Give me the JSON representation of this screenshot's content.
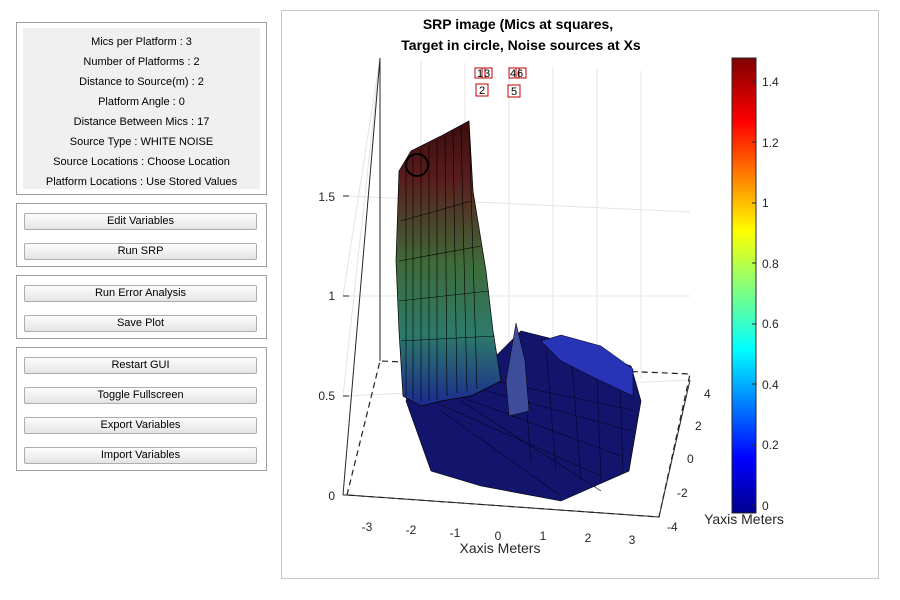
{
  "info": {
    "mics_per_platform": "Mics per Platform : 3",
    "number_of_platforms": "Number of Platforms : 2",
    "distance_to_source": "Distance to Source(m) : 2",
    "platform_angle": "Platform Angle : 0",
    "distance_between_mics": "Distance Between Mics : 17",
    "source_type": "Source Type : WHITE NOISE",
    "source_locations": "Source Locations : Choose Location",
    "platform_locations": "Platform Locations : Use Stored Values"
  },
  "buttons": {
    "edit_variables": "Edit Variables",
    "run_srp": "Run SRP",
    "run_error_analysis": "Run Error Analysis",
    "save_plot": "Save Plot",
    "restart_gui": "Restart GUI",
    "toggle_fullscreen": "Toggle Fullscreen",
    "export_variables": "Export Variables",
    "import_variables": "Import Variables"
  },
  "chart_data": {
    "type": "surface",
    "title_line1": "SRP image (Mics at squares,",
    "title_line2": "Target in circle, Noise sources at Xs",
    "xlabel": "Xaxis Meters",
    "ylabel": "Yaxis Meters",
    "x_ticks": [
      "-3",
      "-2",
      "-1",
      "0",
      "1",
      "2",
      "3"
    ],
    "y_ticks": [
      "4",
      "2",
      "0",
      "-2",
      "-4"
    ],
    "z_ticks": [
      "0",
      "0.5",
      "1",
      "1.5"
    ],
    "colorbar_ticks": [
      "0",
      "0.2",
      "0.4",
      "0.6",
      "0.8",
      "1",
      "1.2",
      "1.4"
    ],
    "colorbar_range": [
      0,
      1.48
    ],
    "colormap": "jet",
    "mic_labels": [
      "1",
      "3",
      "2",
      "4",
      "6",
      "5"
    ]
  }
}
